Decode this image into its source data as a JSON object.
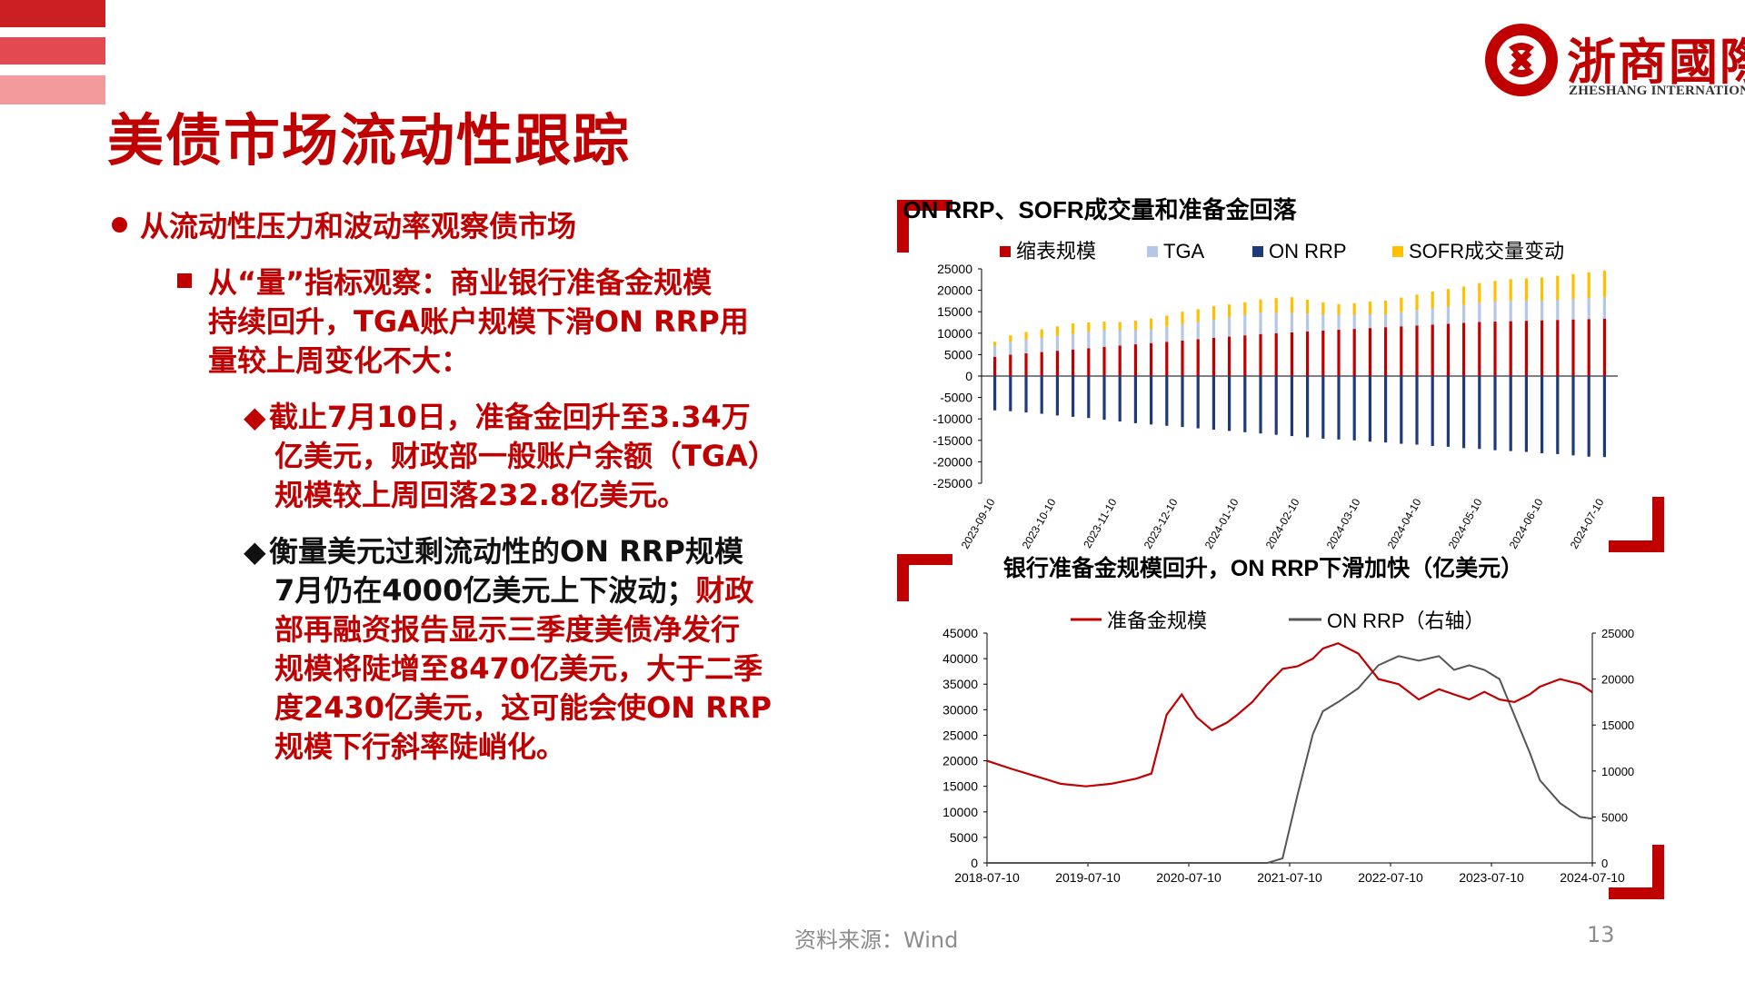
{
  "header": {
    "title": "美债市场流动性跟踪"
  },
  "logo": {
    "name_cn": "浙商國際",
    "name_en": "ZHESHANG INTERNATIONAL"
  },
  "bullets": {
    "level1": "从流动性压力和波动率观察债市场",
    "level2_lines": [
      "从“量”指标观察：商业银行准备金规模",
      "持续回升，TGA账户规模下滑ON RRP用",
      "量较上周变化不大："
    ],
    "level3a_lines": [
      "截止7月10日，准备金回升至3.34万",
      "亿美元，财政部一般账户余额（TGA）",
      "规模较上周回落232.8亿美元。"
    ],
    "level3b_line1": "衡量美元过剩流动性的ON RRP规模",
    "level3b_line2_black": "7月仍在4000亿美元上下波动；",
    "level3b_line2_red": "财政",
    "level3b_lines_red": [
      "部再融资报告显示三季度美债净发行",
      "规模将陡增至8470亿美元，大于二季",
      "度2430亿美元，这可能会使ON RRP",
      "规模下行斜率陡峭化。"
    ]
  },
  "footer": {
    "source": "资料来源：Wind",
    "page": "13"
  },
  "colors": {
    "brand_red": "#c00000",
    "qt": "#c00000",
    "tga": "#b4c7e7",
    "onrrp": "#1f3a7a",
    "sofr": "#ffc000",
    "reserve_line": "#c00000",
    "onrrp_line": "#555555"
  },
  "chart_data": [
    {
      "type": "bar",
      "title": "ON RRP、SOFR成交量和准备金回落",
      "legend": [
        "缩表规模",
        "TGA",
        "ON RRP",
        "SOFR成交量变动"
      ],
      "ylim": [
        -25000,
        25000
      ],
      "yticks": [
        25000,
        20000,
        15000,
        10000,
        5000,
        0,
        -5000,
        -10000,
        -15000,
        -20000,
        -25000
      ],
      "xtick_labels": [
        "2023-09-10",
        "2023-10-10",
        "2023-11-10",
        "2023-12-10",
        "2024-01-10",
        "2024-02-10",
        "2024-03-10",
        "2024-04-10",
        "2024-05-10",
        "2024-06-10",
        "2024-07-10"
      ],
      "series": [
        {
          "name": "缩表规模",
          "values": [
            4500,
            5000,
            5300,
            5600,
            5900,
            6200,
            6500,
            6800,
            7100,
            7400,
            7700,
            8000,
            8300,
            8600,
            8900,
            9200,
            9500,
            9800,
            10000,
            10200,
            10400,
            10600,
            10800,
            11000,
            11200,
            11400,
            11600,
            11800,
            12000,
            12200,
            12400,
            12600,
            12700,
            12800,
            12900,
            13000,
            13100,
            13200,
            13300,
            13400
          ]
        },
        {
          "name": "TGA",
          "values": [
            2500,
            3000,
            3200,
            3300,
            3400,
            3600,
            3800,
            3900,
            3600,
            3300,
            3200,
            3500,
            3800,
            4000,
            4200,
            4500,
            4800,
            5000,
            4700,
            4500,
            4200,
            3800,
            3500,
            3300,
            3200,
            3000,
            3300,
            3600,
            3800,
            4000,
            4200,
            4500,
            4700,
            4800,
            4700,
            4600,
            4700,
            4800,
            4900,
            5000
          ]
        },
        {
          "name": "ON RRP",
          "values": [
            -8000,
            -8200,
            -8500,
            -8800,
            -9200,
            -9500,
            -9800,
            -10200,
            -10600,
            -11000,
            -11300,
            -11600,
            -11900,
            -12200,
            -12500,
            -12800,
            -13100,
            -13400,
            -13700,
            -14000,
            -14300,
            -14600,
            -14800,
            -15000,
            -15300,
            -15500,
            -15800,
            -16000,
            -16300,
            -16500,
            -16800,
            -17000,
            -17300,
            -17500,
            -17700,
            -18000,
            -18200,
            -18500,
            -18800,
            -18900
          ]
        },
        {
          "name": "SOFR成交量变动",
          "values": [
            1000,
            1500,
            1800,
            2000,
            2300,
            2500,
            2200,
            2000,
            1900,
            2200,
            2500,
            2600,
            2900,
            3000,
            3200,
            3000,
            2900,
            3100,
            3500,
            3700,
            3200,
            2800,
            2500,
            2700,
            3000,
            3200,
            3400,
            3600,
            3900,
            4100,
            4300,
            4600,
            4800,
            5000,
            5200,
            5400,
            5600,
            5800,
            6000,
            6200
          ]
        }
      ]
    },
    {
      "type": "line",
      "title": "银行准备金规模回升，ON RRP下滑加快（亿美元）",
      "legend": [
        "准备金规模",
        "ON RRP（右轴）"
      ],
      "ylim_left": [
        0,
        45000
      ],
      "yticks_left": [
        45000,
        40000,
        35000,
        30000,
        25000,
        20000,
        15000,
        10000,
        5000,
        0
      ],
      "ylim_right": [
        0,
        25000
      ],
      "yticks_right": [
        25000,
        20000,
        15000,
        10000,
        5000,
        0
      ],
      "xtick_labels": [
        "2018-07-10",
        "2019-07-10",
        "2020-07-10",
        "2021-07-10",
        "2022-07-10",
        "2023-07-10",
        "2024-07-10"
      ],
      "x": [
        2018.52,
        2018.75,
        2019.0,
        2019.25,
        2019.5,
        2019.75,
        2020.0,
        2020.15,
        2020.3,
        2020.45,
        2020.6,
        2020.75,
        2020.9,
        2021.0,
        2021.15,
        2021.3,
        2021.45,
        2021.6,
        2021.75,
        2021.85,
        2022.0,
        2022.2,
        2022.4,
        2022.6,
        2022.8,
        2023.0,
        2023.15,
        2023.3,
        2023.45,
        2023.6,
        2023.75,
        2023.9,
        2024.0,
        2024.2,
        2024.4,
        2024.52
      ],
      "series": [
        {
          "name": "准备金规模",
          "values": [
            20000,
            18500,
            17000,
            15500,
            15000,
            15500,
            16500,
            17500,
            29000,
            33000,
            28500,
            26000,
            27500,
            29000,
            31500,
            35000,
            38000,
            38500,
            40000,
            42000,
            43000,
            41000,
            36000,
            35000,
            32000,
            34000,
            33000,
            32000,
            33500,
            32000,
            31500,
            33000,
            34500,
            36000,
            35000,
            33400
          ]
        },
        {
          "name": "ON RRP（右轴）",
          "values": [
            0,
            0,
            0,
            0,
            0,
            0,
            0,
            0,
            0,
            0,
            0,
            0,
            0,
            0,
            0,
            0,
            500,
            7500,
            14000,
            16500,
            17500,
            19000,
            21500,
            22500,
            22000,
            22500,
            21000,
            21500,
            21000,
            20000,
            16000,
            12000,
            9000,
            6500,
            5000,
            4800
          ]
        }
      ]
    }
  ]
}
